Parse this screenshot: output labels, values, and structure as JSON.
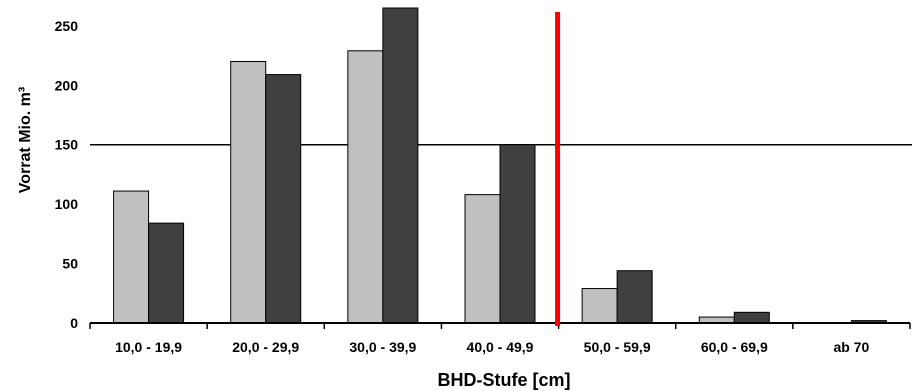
{
  "chart_data": {
    "type": "bar",
    "title": "",
    "xlabel": "BHD-Stufe [cm]",
    "ylabel": "Vorrat Mio. m³",
    "ylim": [
      0,
      265
    ],
    "yticks": [
      0,
      50,
      100,
      150,
      200,
      250
    ],
    "categories": [
      "10,0 - 19,9",
      "20,0 - 29,9",
      "30,0 - 39,9",
      "40,0 - 49,9",
      "50,0 - 59,9",
      "60,0 - 69,9",
      "ab 70"
    ],
    "series": [
      {
        "color": "#c0c0c0",
        "values": [
          111,
          220,
          229,
          108,
          29,
          5,
          0
        ]
      },
      {
        "color": "#404040",
        "values": [
          84,
          209,
          265,
          150,
          44,
          9,
          2
        ]
      }
    ],
    "reference_line_y": 150,
    "reference_line_color": "#000000",
    "divider_after_category": 3,
    "divider_color": "#ff0000",
    "grid": false,
    "legend": "none"
  }
}
